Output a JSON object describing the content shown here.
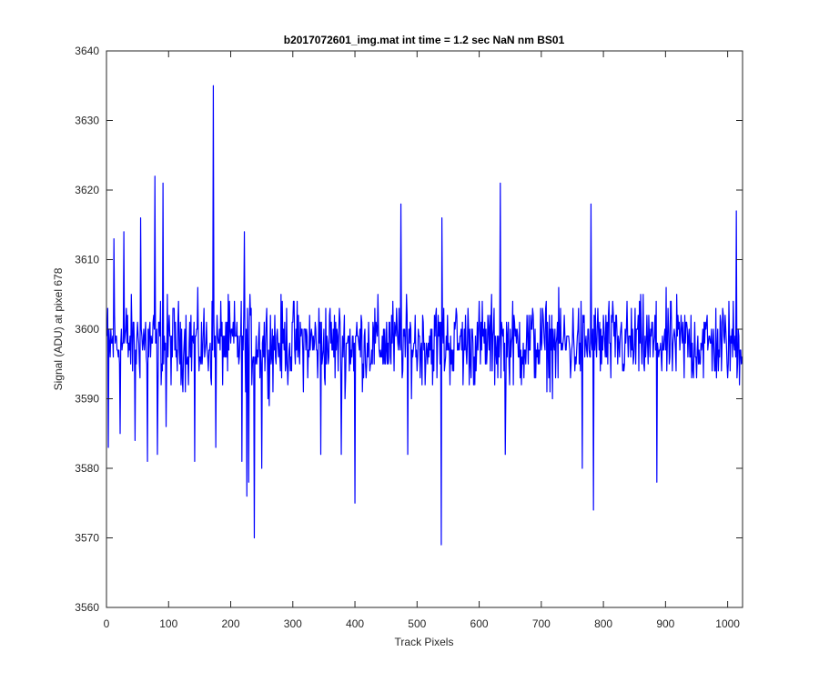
{
  "chart_data": {
    "type": "line",
    "title": "b2017072601_img.mat int time = 1.2 sec  NaN nm BS01",
    "xlabel": "Track Pixels",
    "ylabel": "Signal (ADU) at pixel 678",
    "xlim": [
      0,
      1024
    ],
    "ylim": [
      3560,
      3640
    ],
    "xticks": [
      0,
      100,
      200,
      300,
      400,
      500,
      600,
      700,
      800,
      900,
      1000
    ],
    "yticks": [
      3560,
      3570,
      3580,
      3590,
      3600,
      3610,
      3620,
      3630,
      3640
    ],
    "grid": false,
    "legend": "none",
    "series": [
      {
        "color": "#0000ff",
        "n_points": 1024,
        "baseline": 3598,
        "noise_amplitude": 9,
        "peaks": [
          {
            "x": 3,
            "y": 3583
          },
          {
            "x": 12,
            "y": 3613
          },
          {
            "x": 22,
            "y": 3585
          },
          {
            "x": 28,
            "y": 3614
          },
          {
            "x": 46,
            "y": 3584
          },
          {
            "x": 55,
            "y": 3616
          },
          {
            "x": 66,
            "y": 3581
          },
          {
            "x": 78,
            "y": 3622
          },
          {
            "x": 82,
            "y": 3582
          },
          {
            "x": 91,
            "y": 3621
          },
          {
            "x": 96,
            "y": 3586
          },
          {
            "x": 142,
            "y": 3581
          },
          {
            "x": 172,
            "y": 3635
          },
          {
            "x": 176,
            "y": 3583
          },
          {
            "x": 218,
            "y": 3581
          },
          {
            "x": 222,
            "y": 3614
          },
          {
            "x": 226,
            "y": 3576
          },
          {
            "x": 229,
            "y": 3578
          },
          {
            "x": 238,
            "y": 3570
          },
          {
            "x": 250,
            "y": 3580
          },
          {
            "x": 345,
            "y": 3582
          },
          {
            "x": 378,
            "y": 3582
          },
          {
            "x": 400,
            "y": 3575
          },
          {
            "x": 474,
            "y": 3618
          },
          {
            "x": 485,
            "y": 3582
          },
          {
            "x": 539,
            "y": 3569
          },
          {
            "x": 540,
            "y": 3616
          },
          {
            "x": 634,
            "y": 3621
          },
          {
            "x": 642,
            "y": 3582
          },
          {
            "x": 766,
            "y": 3580
          },
          {
            "x": 780,
            "y": 3618
          },
          {
            "x": 784,
            "y": 3574
          },
          {
            "x": 886,
            "y": 3578
          },
          {
            "x": 1014,
            "y": 3617
          },
          {
            "x": 1022,
            "y": 3595
          }
        ]
      }
    ]
  }
}
